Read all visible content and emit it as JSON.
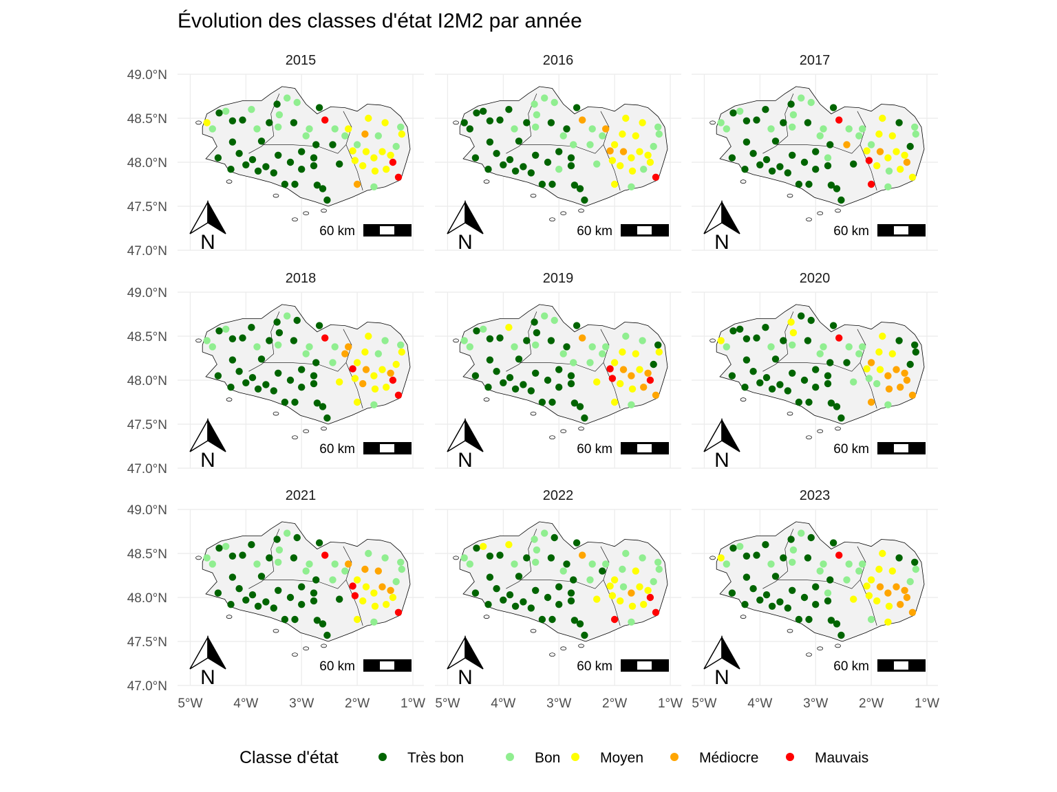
{
  "title": "Évolution des classes d'état I2M2 par année",
  "legend": {
    "title": "Classe d'état",
    "classes": [
      {
        "label": "Très bon",
        "color": "#006400"
      },
      {
        "label": "Bon",
        "color": "#90ee90"
      },
      {
        "label": "Moyen",
        "color": "#ffff00"
      },
      {
        "label": "Médiocre",
        "color": "#ffa500"
      },
      {
        "label": "Mauvais",
        "color": "#ff0000"
      }
    ]
  },
  "axes": {
    "lat_ticks": [
      {
        "value": 49.0,
        "label": "49.0°N"
      },
      {
        "value": 48.5,
        "label": "48.5°N"
      },
      {
        "value": 48.0,
        "label": "48.0°N"
      },
      {
        "value": 47.5,
        "label": "47.5°N"
      },
      {
        "value": 47.0,
        "label": "47.0°N"
      }
    ],
    "lon_ticks": [
      {
        "value": -5,
        "label": "5°W"
      },
      {
        "value": -4,
        "label": "4°W"
      },
      {
        "value": -3,
        "label": "3°W"
      },
      {
        "value": -2,
        "label": "2°W"
      },
      {
        "value": -1,
        "label": "1°W"
      }
    ],
    "lon_range": [
      -5.03,
      -1.0
    ],
    "lat_range": [
      47.0,
      49.0
    ]
  },
  "scale_bar": {
    "label": "60 km"
  },
  "north_arrow": {
    "letter": "N"
  },
  "panels": [
    "2015",
    "2016",
    "2017",
    "2018",
    "2019",
    "2020",
    "2021",
    "2022",
    "2023"
  ],
  "chart_data": {
    "type": "scatter",
    "facet_by": "year",
    "x_unit": "longitude",
    "y_unit": "latitude",
    "xlim": [
      -5.03,
      -1.0
    ],
    "ylim": [
      47.0,
      49.0
    ],
    "grid": true,
    "legend_placement": "bottom",
    "classes": [
      "Très bon",
      "Bon",
      "Moyen",
      "Médiocre",
      "Mauvais"
    ],
    "stations": [
      [
        -4.48,
        48.56
      ],
      [
        -4.24,
        48.47
      ],
      [
        -4.6,
        48.38
      ],
      [
        -4.24,
        48.23
      ],
      [
        -4.5,
        48.05
      ],
      [
        -4.27,
        47.92
      ],
      [
        -4.0,
        47.97
      ],
      [
        -3.78,
        47.9
      ],
      [
        -3.88,
        48.03
      ],
      [
        -3.64,
        47.95
      ],
      [
        -3.5,
        47.88
      ],
      [
        -3.42,
        48.08
      ],
      [
        -3.3,
        47.75
      ],
      [
        -3.12,
        47.75
      ],
      [
        -3.0,
        47.92
      ],
      [
        -2.78,
        47.96
      ],
      [
        -2.72,
        47.74
      ],
      [
        -2.62,
        47.7
      ],
      [
        -2.54,
        47.57
      ],
      [
        -3.8,
        48.38
      ],
      [
        -3.58,
        48.45
      ],
      [
        -3.44,
        48.66
      ],
      [
        -3.26,
        48.73
      ],
      [
        -3.08,
        48.68
      ],
      [
        -3.14,
        48.45
      ],
      [
        -2.92,
        48.3
      ],
      [
        -2.74,
        48.2
      ],
      [
        -2.58,
        48.48
      ],
      [
        -2.4,
        48.38
      ],
      [
        -2.22,
        48.3
      ],
      [
        -3.0,
        48.12
      ],
      [
        -2.78,
        48.05
      ],
      [
        -2.32,
        47.98
      ],
      [
        -4.06,
        48.48
      ],
      [
        -3.72,
        48.24
      ],
      [
        -3.42,
        48.4
      ],
      [
        -2.86,
        48.38
      ],
      [
        -2.44,
        48.2
      ],
      [
        -4.12,
        48.1
      ],
      [
        -3.2,
        48.0
      ],
      [
        -2.16,
        48.38
      ],
      [
        -2.0,
        48.2
      ],
      [
        -1.84,
        48.12
      ],
      [
        -1.7,
        48.05
      ],
      [
        -1.55,
        48.12
      ],
      [
        -1.4,
        48.08
      ],
      [
        -1.3,
        48.18
      ],
      [
        -1.2,
        48.32
      ],
      [
        -1.62,
        48.3
      ],
      [
        -1.86,
        48.32
      ],
      [
        -2.04,
        48.02
      ],
      [
        -1.9,
        47.96
      ],
      [
        -1.68,
        47.9
      ],
      [
        -1.48,
        47.92
      ],
      [
        -1.26,
        47.83
      ],
      [
        -2.0,
        47.75
      ],
      [
        -1.7,
        47.72
      ],
      [
        -1.5,
        48.45
      ],
      [
        -1.22,
        48.4
      ],
      [
        -2.08,
        48.13
      ],
      [
        -4.7,
        48.45
      ],
      [
        -4.36,
        48.58
      ],
      [
        -3.9,
        48.6
      ],
      [
        -3.4,
        48.54
      ],
      [
        -2.68,
        48.62
      ],
      [
        -1.8,
        48.5
      ],
      [
        -1.36,
        48.0
      ]
    ],
    "series": [
      {
        "year": "2015",
        "classes": [
          0,
          0,
          1,
          0,
          0,
          0,
          0,
          0,
          0,
          0,
          0,
          0,
          0,
          0,
          0,
          0,
          0,
          0,
          0,
          1,
          0,
          0,
          1,
          1,
          0,
          1,
          0,
          4,
          1,
          1,
          0,
          0,
          0,
          0,
          0,
          1,
          1,
          0,
          0,
          0,
          2,
          1,
          2,
          2,
          2,
          2,
          1,
          2,
          1,
          3,
          2,
          2,
          2,
          2,
          4,
          3,
          1,
          2,
          1,
          2,
          2,
          1,
          1,
          1,
          0,
          2,
          4
        ]
      },
      {
        "year": "2016",
        "classes": [
          0,
          0,
          0,
          0,
          0,
          0,
          0,
          0,
          0,
          0,
          0,
          0,
          0,
          0,
          1,
          0,
          0,
          0,
          0,
          1,
          0,
          1,
          1,
          1,
          0,
          1,
          1,
          3,
          1,
          1,
          0,
          0,
          1,
          0,
          0,
          1,
          0,
          1,
          0,
          0,
          3,
          2,
          3,
          2,
          2,
          2,
          1,
          1,
          2,
          2,
          2,
          2,
          2,
          1,
          4,
          2,
          1,
          2,
          1,
          3,
          0,
          0,
          0,
          1,
          0,
          2,
          2
        ]
      },
      {
        "year": "2017",
        "classes": [
          0,
          0,
          1,
          0,
          0,
          0,
          0,
          0,
          0,
          0,
          0,
          0,
          0,
          0,
          0,
          0,
          0,
          0,
          0,
          1,
          0,
          0,
          1,
          1,
          0,
          1,
          0,
          4,
          1,
          1,
          0,
          1,
          0,
          0,
          0,
          1,
          1,
          3,
          0,
          0,
          1,
          1,
          3,
          2,
          2,
          2,
          0,
          1,
          2,
          2,
          4,
          2,
          1,
          2,
          2,
          4,
          1,
          0,
          1,
          2,
          1,
          1,
          0,
          1,
          0,
          2,
          3
        ]
      },
      {
        "year": "2018",
        "classes": [
          0,
          0,
          1,
          0,
          0,
          0,
          0,
          0,
          0,
          0,
          0,
          0,
          0,
          0,
          0,
          0,
          0,
          0,
          0,
          1,
          0,
          0,
          1,
          0,
          0,
          1,
          0,
          4,
          1,
          3,
          0,
          0,
          2,
          0,
          0,
          1,
          1,
          1,
          0,
          0,
          3,
          2,
          3,
          2,
          2,
          3,
          2,
          2,
          1,
          2,
          2,
          3,
          2,
          2,
          4,
          2,
          1,
          1,
          1,
          4,
          1,
          1,
          0,
          0,
          0,
          2,
          4
        ]
      },
      {
        "year": "2019",
        "classes": [
          0,
          0,
          1,
          0,
          0,
          0,
          0,
          0,
          0,
          0,
          0,
          0,
          0,
          0,
          0,
          0,
          0,
          0,
          0,
          1,
          0,
          0,
          1,
          1,
          0,
          1,
          1,
          3,
          1,
          1,
          0,
          0,
          2,
          0,
          0,
          1,
          0,
          1,
          0,
          0,
          1,
          2,
          3,
          3,
          2,
          3,
          0,
          2,
          2,
          2,
          4,
          2,
          2,
          3,
          3,
          2,
          1,
          1,
          0,
          4,
          1,
          1,
          2,
          0,
          0,
          1,
          4
        ]
      },
      {
        "year": "2020",
        "classes": [
          0,
          0,
          1,
          0,
          0,
          0,
          0,
          0,
          0,
          0,
          0,
          0,
          0,
          0,
          0,
          0,
          0,
          0,
          0,
          1,
          0,
          2,
          0,
          0,
          0,
          1,
          0,
          4,
          1,
          1,
          0,
          0,
          1,
          0,
          0,
          1,
          1,
          0,
          0,
          0,
          1,
          3,
          2,
          3,
          3,
          3,
          0,
          0,
          2,
          2,
          1,
          1,
          3,
          3,
          3,
          3,
          1,
          0,
          0,
          2,
          2,
          0,
          0,
          2,
          0,
          2,
          3
        ]
      },
      {
        "year": "2021",
        "classes": [
          0,
          0,
          1,
          0,
          0,
          0,
          0,
          0,
          0,
          0,
          0,
          0,
          0,
          0,
          0,
          0,
          0,
          0,
          0,
          1,
          0,
          0,
          1,
          0,
          0,
          1,
          0,
          4,
          1,
          1,
          0,
          0,
          0,
          0,
          0,
          1,
          1,
          1,
          0,
          0,
          3,
          2,
          2,
          2,
          3,
          3,
          1,
          1,
          3,
          3,
          4,
          2,
          2,
          2,
          4,
          2,
          1,
          1,
          1,
          4,
          1,
          1,
          0,
          1,
          0,
          1,
          2
        ]
      },
      {
        "year": "2022",
        "classes": [
          0,
          0,
          1,
          0,
          0,
          0,
          0,
          0,
          0,
          0,
          0,
          0,
          0,
          0,
          0,
          0,
          0,
          0,
          0,
          1,
          0,
          1,
          1,
          0,
          0,
          1,
          0,
          3,
          1,
          0,
          0,
          0,
          2,
          0,
          0,
          1,
          0,
          1,
          0,
          0,
          1,
          2,
          1,
          3,
          2,
          2,
          1,
          1,
          2,
          1,
          2,
          2,
          2,
          2,
          4,
          4,
          1,
          1,
          1,
          2,
          1,
          2,
          2,
          1,
          0,
          1,
          4
        ]
      },
      {
        "year": "2023",
        "classes": [
          0,
          0,
          1,
          0,
          0,
          0,
          0,
          0,
          0,
          0,
          0,
          0,
          0,
          0,
          0,
          0,
          0,
          0,
          0,
          1,
          0,
          0,
          1,
          0,
          0,
          1,
          0,
          4,
          1,
          1,
          0,
          1,
          2,
          0,
          0,
          1,
          1,
          1,
          0,
          0,
          1,
          2,
          3,
          3,
          3,
          3,
          1,
          1,
          2,
          2,
          2,
          2,
          2,
          3,
          3,
          1,
          2,
          0,
          0,
          2,
          2,
          1,
          0,
          1,
          0,
          2,
          3
        ]
      }
    ]
  }
}
